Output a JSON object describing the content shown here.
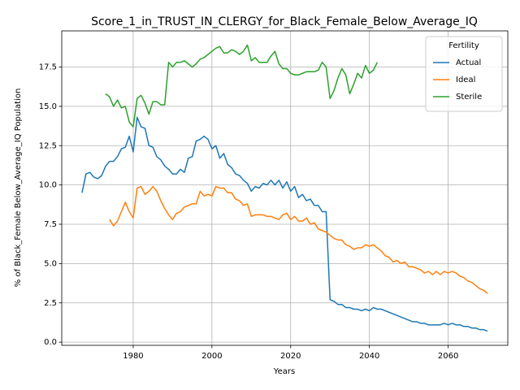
{
  "chart_data": {
    "type": "line",
    "title": "Score_1_in_TRUST_IN_CLERGY_for_Black_Female_Below_Average_IQ",
    "xlabel": "Years",
    "ylabel": "% of Black_Female Below_Average_IQ Population",
    "x": [
      1967,
      1968,
      1969,
      1970,
      1971,
      1972,
      1973,
      1974,
      1975,
      1976,
      1977,
      1978,
      1979,
      1980,
      1981,
      1982,
      1983,
      1984,
      1985,
      1986,
      1987,
      1988,
      1989,
      1990,
      1991,
      1992,
      1993,
      1994,
      1995,
      1996,
      1997,
      1998,
      1999,
      2000,
      2001,
      2002,
      2003,
      2004,
      2005,
      2006,
      2007,
      2008,
      2009,
      2010,
      2011,
      2012,
      2013,
      2014,
      2015,
      2016,
      2017,
      2018,
      2019,
      2020,
      2021,
      2022,
      2023,
      2024,
      2025,
      2026,
      2027,
      2028,
      2029,
      2030,
      2031,
      2032,
      2033,
      2034,
      2035,
      2036,
      2037,
      2038,
      2039,
      2040,
      2041,
      2042,
      2043,
      2044,
      2045,
      2046,
      2047,
      2048,
      2049,
      2050,
      2051,
      2052,
      2053,
      2054,
      2055,
      2056,
      2057,
      2058,
      2059,
      2060,
      2061,
      2062,
      2063,
      2064,
      2065,
      2066,
      2067,
      2068,
      2069,
      2070
    ],
    "series": [
      {
        "name": "Actual",
        "color": "#1f77b4",
        "values": [
          9.5,
          10.7,
          10.8,
          10.5,
          10.4,
          10.6,
          11.2,
          11.5,
          11.5,
          11.8,
          12.3,
          12.4,
          13.1,
          12.1,
          14.3,
          13.7,
          13.6,
          12.5,
          12.4,
          11.8,
          11.6,
          11.2,
          11.0,
          10.7,
          10.7,
          11.0,
          10.8,
          11.7,
          11.8,
          12.8,
          12.9,
          13.1,
          12.9,
          12.3,
          12.5,
          11.7,
          12.0,
          11.3,
          11.1,
          10.7,
          10.6,
          10.3,
          10.1,
          9.6,
          9.9,
          9.8,
          10.1,
          10.0,
          10.3,
          10.0,
          10.3,
          9.8,
          10.2,
          9.6,
          9.9,
          9.2,
          9.4,
          9.0,
          9.1,
          8.7,
          8.7,
          8.3,
          8.3,
          2.7,
          2.6,
          2.4,
          2.4,
          2.2,
          2.2,
          2.1,
          2.1,
          2.0,
          2.1,
          2.0,
          2.2,
          2.1,
          2.1,
          2.0,
          1.9,
          1.8,
          1.7,
          1.6,
          1.5,
          1.4,
          1.3,
          1.3,
          1.2,
          1.2,
          1.1,
          1.1,
          1.1,
          1.1,
          1.2,
          1.1,
          1.2,
          1.1,
          1.1,
          1.0,
          1.0,
          0.9,
          0.9,
          0.8,
          0.8,
          0.7
        ]
      },
      {
        "name": "Ideal",
        "color": "#ff7f0e",
        "values": [
          null,
          null,
          null,
          null,
          null,
          null,
          null,
          7.8,
          7.4,
          7.7,
          8.3,
          8.9,
          8.3,
          7.9,
          9.8,
          9.9,
          9.4,
          9.6,
          9.9,
          9.6,
          9.0,
          8.5,
          8.1,
          7.8,
          8.2,
          8.3,
          8.6,
          8.7,
          8.8,
          8.8,
          9.6,
          9.3,
          9.4,
          9.3,
          9.9,
          9.8,
          9.8,
          9.5,
          9.5,
          9.1,
          9.0,
          8.7,
          8.8,
          8.0,
          8.1,
          8.1,
          8.1,
          8.0,
          8.0,
          7.9,
          7.8,
          8.1,
          8.2,
          7.8,
          8.0,
          7.7,
          7.7,
          7.9,
          7.5,
          7.6,
          7.2,
          7.1,
          7.0,
          6.8,
          6.6,
          6.5,
          6.5,
          6.2,
          6.1,
          5.9,
          6.0,
          6.0,
          6.2,
          6.1,
          6.2,
          6.0,
          5.8,
          5.5,
          5.4,
          5.1,
          5.2,
          5.0,
          5.1,
          4.8,
          4.8,
          4.7,
          4.6,
          4.4,
          4.5,
          4.3,
          4.5,
          4.3,
          4.5,
          4.4,
          4.5,
          4.4,
          4.2,
          4.1,
          3.9,
          3.8,
          3.6,
          3.4,
          3.3,
          3.1
        ]
      },
      {
        "name": "Sterile",
        "color": "#2ca02c",
        "values": [
          null,
          null,
          null,
          null,
          null,
          null,
          15.8,
          15.6,
          15.0,
          15.4,
          14.9,
          15.0,
          14.0,
          13.7,
          15.5,
          15.7,
          15.2,
          14.5,
          15.3,
          15.3,
          15.1,
          15.1,
          17.8,
          17.5,
          17.8,
          17.8,
          17.9,
          17.7,
          17.5,
          17.7,
          18.0,
          18.1,
          18.3,
          18.5,
          18.7,
          18.8,
          18.4,
          18.4,
          18.6,
          18.5,
          18.3,
          18.5,
          18.9,
          17.9,
          18.1,
          17.8,
          17.8,
          17.8,
          18.2,
          18.5,
          17.7,
          17.4,
          17.4,
          17.1,
          17.0,
          17.0,
          17.1,
          17.2,
          17.2,
          17.2,
          17.3,
          17.8,
          17.5,
          15.5,
          16.0,
          16.8,
          17.4,
          17.0,
          15.8,
          16.4,
          17.1,
          16.8,
          17.6,
          17.1,
          17.3,
          17.8,
          null,
          null,
          null,
          null,
          null,
          null,
          null,
          null,
          null,
          null,
          null,
          null,
          null,
          null,
          null,
          null,
          null,
          null,
          null,
          null,
          null,
          null,
          null,
          null,
          null,
          null,
          null,
          null
        ]
      }
    ],
    "xlim": [
      1961.85,
      2075.15
    ],
    "ylim": [
      -0.2,
      19.8
    ],
    "xticks": [
      1980,
      2000,
      2020,
      2040,
      2060
    ],
    "yticks": [
      {
        "value": 0,
        "label": "0.0"
      },
      {
        "value": 2.5,
        "label": "2.5"
      },
      {
        "value": 5,
        "label": "5.0"
      },
      {
        "value": 7.5,
        "label": "7.5"
      },
      {
        "value": 10,
        "label": "10.0"
      },
      {
        "value": 12.5,
        "label": "12.5"
      },
      {
        "value": 15,
        "label": "15.0"
      },
      {
        "value": 17.5,
        "label": "17.5"
      }
    ],
    "grid": true,
    "legend": {
      "title": "Fertility",
      "loc": "upper right"
    }
  }
}
